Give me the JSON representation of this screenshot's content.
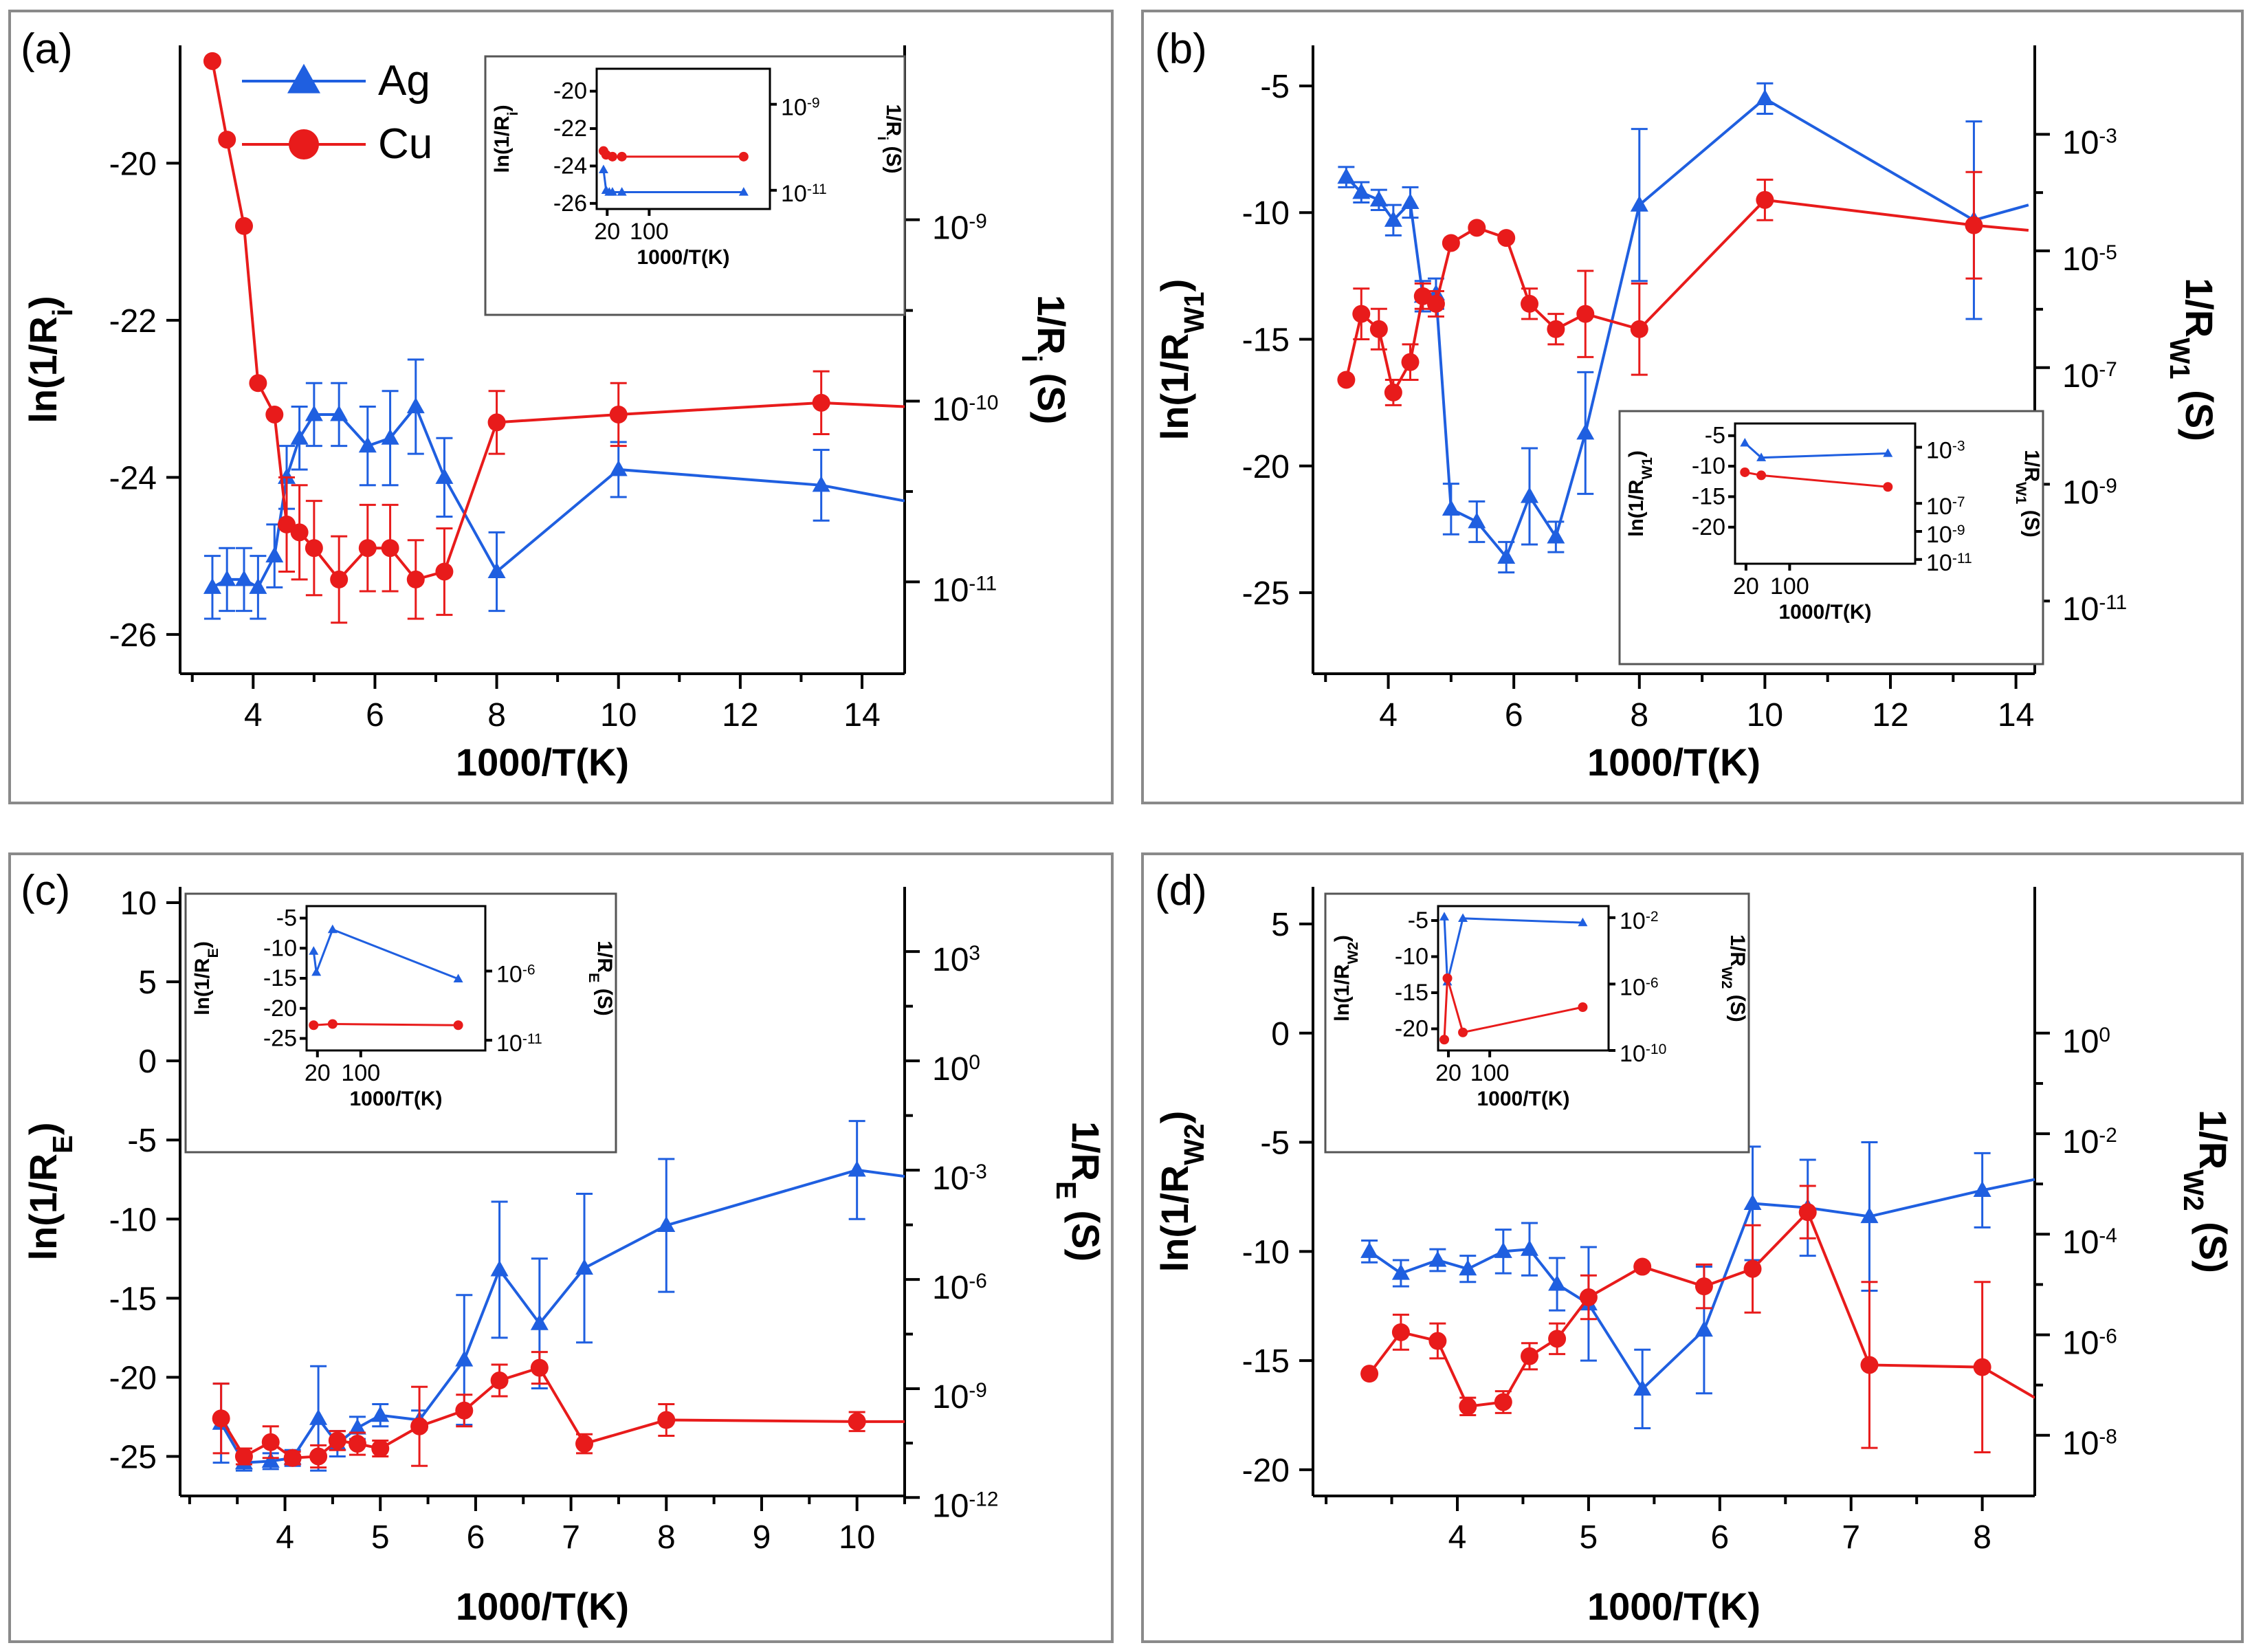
{
  "colors": {
    "ag": "#1f5fe0",
    "cu": "#e81b1b"
  },
  "legend": {
    "ag": "Ag",
    "cu": "Cu"
  },
  "chart_data": [
    {
      "panel": "(a)",
      "type": "line",
      "xlabel": "1000/T(K)",
      "ylabel": "ln(1/R",
      "ylabel_sub": "i",
      "ylabel_end": ")",
      "y2label": "1/R",
      "y2label_sub": "i",
      "y2label_end": " (S)",
      "xlim": [
        2.8,
        14.7
      ],
      "ylim": [
        -26.5,
        -18.5
      ],
      "xticks": [
        4,
        6,
        8,
        10,
        12,
        14
      ],
      "yticks": [
        -26,
        -24,
        -22,
        -20
      ],
      "y2ticks": [
        {
          "label": "10",
          "exp": "-11",
          "y": -25.33
        },
        {
          "label": "10",
          "exp": "-10",
          "y": -23.03
        },
        {
          "label": "10",
          "exp": "-9",
          "y": -20.72
        }
      ],
      "legend_show": true,
      "series": [
        {
          "name": "Ag",
          "color": "ag",
          "marker": "triangle",
          "x": [
            3.33,
            3.57,
            3.85,
            4.08,
            4.35,
            4.55,
            4.76,
            5.0,
            5.41,
            5.88,
            6.25,
            6.67,
            7.14,
            8.0,
            10.0,
            13.33,
            14.7
          ],
          "y": [
            -25.4,
            -25.3,
            -25.3,
            -25.4,
            -25.0,
            -24.0,
            -23.5,
            -23.2,
            -23.2,
            -23.6,
            -23.5,
            -23.1,
            -24.0,
            -25.2,
            -23.9,
            -24.1,
            -24.3
          ],
          "err": [
            0.4,
            0.4,
            0.4,
            0.4,
            0.4,
            0.4,
            0.4,
            0.4,
            0.4,
            0.5,
            0.6,
            0.6,
            0.5,
            0.5,
            0.35,
            0.45,
            0
          ]
        },
        {
          "name": "Cu",
          "color": "cu",
          "marker": "circle",
          "x": [
            3.33,
            3.57,
            3.85,
            4.08,
            4.35,
            4.55,
            4.76,
            5.0,
            5.41,
            5.88,
            6.25,
            6.67,
            7.14,
            8.0,
            10.0,
            13.33,
            14.7
          ],
          "y": [
            -18.7,
            -19.7,
            -20.8,
            -22.8,
            -23.2,
            -24.6,
            -24.7,
            -24.9,
            -25.3,
            -24.9,
            -24.9,
            -25.3,
            -25.2,
            -23.3,
            -23.2,
            -23.05,
            -23.1
          ],
          "err": [
            0,
            0,
            0,
            0,
            0,
            0.6,
            0.6,
            0.6,
            0.55,
            0.55,
            0.55,
            0.5,
            0.55,
            0.4,
            0.4,
            0.4,
            0
          ]
        }
      ],
      "inset": {
        "ylabel": "ln(1/R",
        "ylabel_sub": "i",
        "ylabel_end": ")",
        "y2label": "1/R",
        "y2label_sub": "i",
        "y2label_end": " (S)",
        "xlabel": "1000/T(K)",
        "xlim": [
          0,
          330
        ],
        "ylim": [
          -26.3,
          -18.8
        ],
        "xticks": [
          20,
          100
        ],
        "yticks": [
          -26,
          -24,
          -22,
          -20
        ],
        "y2ticks": [
          {
            "label": "10",
            "exp": "-11",
            "y": -25.3
          },
          {
            "label": "10",
            "exp": "-9",
            "y": -20.7
          }
        ],
        "series": [
          {
            "name": "Ag",
            "color": "ag",
            "marker": "triangle",
            "x": [
              13,
              18,
              24,
              30,
              48,
              280
            ],
            "y": [
              -24.2,
              -25.3,
              -25.4,
              -25.4,
              -25.4,
              -25.4
            ]
          },
          {
            "name": "Cu",
            "color": "cu",
            "marker": "circle",
            "x": [
              13,
              18,
              30,
              48,
              280
            ],
            "y": [
              -23.2,
              -23.4,
              -23.5,
              -23.5,
              -23.5
            ]
          }
        ]
      }
    },
    {
      "panel": "(b)",
      "type": "line",
      "xlabel": "1000/T(K)",
      "ylabel": "ln(1/R",
      "ylabel_sub": "W1",
      "ylabel_end": ")",
      "y2label": "1/R",
      "y2label_sub": "W1",
      "y2label_end": " (S)",
      "xlim": [
        2.8,
        14.3
      ],
      "ylim": [
        -28.2,
        -3.4
      ],
      "xticks": [
        4,
        6,
        8,
        10,
        12,
        14
      ],
      "yticks": [
        -25,
        -20,
        -15,
        -10,
        -5
      ],
      "y2ticks": [
        {
          "label": "10",
          "exp": "-11",
          "y": -25.33
        },
        {
          "label": "10",
          "exp": "-9",
          "y": -20.72
        },
        {
          "label": "10",
          "exp": "-7",
          "y": -16.12
        },
        {
          "label": "10",
          "exp": "-5",
          "y": -11.51
        },
        {
          "label": "10",
          "exp": "-3",
          "y": -6.91
        }
      ],
      "legend_show": false,
      "series": [
        {
          "name": "Ag",
          "color": "ag",
          "marker": "triangle",
          "x": [
            3.33,
            3.57,
            3.85,
            4.08,
            4.35,
            4.55,
            4.76,
            5.0,
            5.41,
            5.88,
            6.25,
            6.67,
            7.14,
            8.0,
            10.0,
            13.33,
            14.2
          ],
          "y": [
            -8.6,
            -9.2,
            -9.5,
            -10.3,
            -9.6,
            -13.3,
            -13.2,
            -21.7,
            -22.2,
            -23.6,
            -21.2,
            -22.8,
            -18.7,
            -9.7,
            -5.5,
            -10.3,
            -9.7
          ],
          "err": [
            0.4,
            0.4,
            0.4,
            0.6,
            0.6,
            0.6,
            0.6,
            1.0,
            0.8,
            0.6,
            1.9,
            0.6,
            2.4,
            3.0,
            0.6,
            3.9,
            0
          ]
        },
        {
          "name": "Cu",
          "color": "cu",
          "marker": "circle",
          "x": [
            3.33,
            3.57,
            3.85,
            4.08,
            4.35,
            4.55,
            4.76,
            5.0,
            5.41,
            5.88,
            6.25,
            6.67,
            7.14,
            8.0,
            10.0,
            13.33,
            14.2
          ],
          "y": [
            -16.6,
            -14.0,
            -14.6,
            -17.1,
            -15.9,
            -13.3,
            -13.6,
            -11.2,
            -10.6,
            -11.0,
            -13.6,
            -14.6,
            -14.0,
            -14.6,
            -9.5,
            -10.5,
            -10.7
          ],
          "err": [
            0,
            1.0,
            0.8,
            0.5,
            0.7,
            0.5,
            0.5,
            0,
            0,
            0,
            0.6,
            0.6,
            1.7,
            1.8,
            0.8,
            2.1,
            0
          ]
        }
      ],
      "inset": {
        "ylabel": "ln(1/R",
        "ylabel_sub": "W1",
        "ylabel_end": ")",
        "y2label": "1/R",
        "y2label_sub": "W1",
        "y2label_end": " (S)",
        "xlabel": "1000/T(K)",
        "xlim": [
          0,
          330
        ],
        "ylim": [
          -26,
          -3
        ],
        "xticks": [
          20,
          100
        ],
        "yticks": [
          -20,
          -15,
          -10,
          -5
        ],
        "y2ticks": [
          {
            "label": "10",
            "exp": "-11",
            "y": -25.3
          },
          {
            "label": "10",
            "exp": "-9",
            "y": -20.7
          },
          {
            "label": "10",
            "exp": "-7",
            "y": -16.1
          },
          {
            "label": "10",
            "exp": "-3",
            "y": -6.9
          }
        ],
        "series": [
          {
            "name": "Ag",
            "color": "ag",
            "marker": "triangle",
            "x": [
              18,
              48,
              280
            ],
            "y": [
              -6.2,
              -8.6,
              -7.9
            ]
          },
          {
            "name": "Cu",
            "color": "cu",
            "marker": "circle",
            "x": [
              18,
              48,
              280
            ],
            "y": [
              -11.0,
              -11.5,
              -13.4
            ]
          }
        ]
      }
    },
    {
      "panel": "(c)",
      "type": "line",
      "xlabel": "1000/T(K)",
      "ylabel": "ln(1/R",
      "ylabel_sub": "E",
      "ylabel_end": ")",
      "y2label": "1/R",
      "y2label_sub": "E",
      "y2label_end": " (S)",
      "xlim": [
        2.9,
        10.5
      ],
      "ylim": [
        -27.5,
        11
      ],
      "xticks": [
        4,
        5,
        6,
        7,
        8,
        9,
        10
      ],
      "yticks": [
        -25,
        -20,
        -15,
        -10,
        -5,
        0,
        5,
        10
      ],
      "y2ticks": [
        {
          "label": "10",
          "exp": "-12",
          "y": -27.6
        },
        {
          "label": "10",
          "exp": "-9",
          "y": -20.72
        },
        {
          "label": "10",
          "exp": "-6",
          "y": -13.82
        },
        {
          "label": "10",
          "exp": "-3",
          "y": -6.91
        },
        {
          "label": "10",
          "exp": "0",
          "y": 0
        },
        {
          "label": "10",
          "exp": "3",
          "y": 6.91
        }
      ],
      "legend_show": false,
      "series": [
        {
          "name": "Ag",
          "color": "ag",
          "marker": "triangle",
          "x": [
            3.33,
            3.57,
            3.85,
            4.08,
            4.35,
            4.55,
            4.76,
            5.0,
            5.41,
            5.88,
            6.25,
            6.67,
            7.14,
            8.0,
            10.0,
            10.5
          ],
          "y": [
            -22.9,
            -25.4,
            -25.3,
            -25.1,
            -22.6,
            -24.2,
            -23.2,
            -22.4,
            -22.7,
            -18.9,
            -13.2,
            -16.6,
            -13.1,
            -10.4,
            -6.9,
            -7.3
          ],
          "err": [
            2.5,
            0.5,
            0.5,
            0.5,
            3.3,
            0.8,
            0.7,
            0.7,
            0.6,
            4.1,
            4.3,
            4.1,
            4.7,
            4.2,
            3.1,
            0
          ]
        },
        {
          "name": "Cu",
          "color": "cu",
          "marker": "circle",
          "x": [
            3.33,
            3.57,
            3.85,
            4.08,
            4.35,
            4.55,
            4.76,
            5.0,
            5.41,
            5.88,
            6.25,
            6.67,
            7.14,
            8.0,
            10.0,
            10.5
          ],
          "y": [
            -22.6,
            -25.0,
            -24.1,
            -25.1,
            -25.0,
            -24.0,
            -24.2,
            -24.5,
            -23.1,
            -22.1,
            -20.2,
            -19.4,
            -24.2,
            -22.7,
            -22.8,
            -22.8
          ],
          "err": [
            2.2,
            0.5,
            1.0,
            0.4,
            0.7,
            0.6,
            0.7,
            0.5,
            2.5,
            1.0,
            1.0,
            1.0,
            0.6,
            1.0,
            0.6,
            0
          ]
        }
      ],
      "inset": {
        "ylabel": "ln(1/R",
        "ylabel_sub": "E",
        "ylabel_end": ")",
        "y2label": "1/R",
        "y2label_sub": "E",
        "y2label_end": " (S)",
        "xlabel": "1000/T(K)",
        "xlim": [
          0,
          330
        ],
        "ylim": [
          -27,
          -3
        ],
        "xticks": [
          20,
          100
        ],
        "yticks": [
          -25,
          -20,
          -15,
          -10,
          -5
        ],
        "y2ticks": [
          {
            "label": "10",
            "exp": "-11",
            "y": -25.3
          },
          {
            "label": "10",
            "exp": "-6",
            "y": -13.8
          }
        ],
        "series": [
          {
            "name": "Ag",
            "color": "ag",
            "marker": "triangle",
            "x": [
              13,
              18,
              48,
              280
            ],
            "y": [
              -10.5,
              -14.0,
              -6.9,
              -15.1
            ]
          },
          {
            "name": "Cu",
            "color": "cu",
            "marker": "circle",
            "x": [
              13,
              48,
              280
            ],
            "y": [
              -22.8,
              -22.6,
              -22.8
            ]
          }
        ]
      }
    },
    {
      "panel": "(d)",
      "type": "line",
      "xlabel": "1000/T(K)",
      "ylabel": "ln(1/R",
      "ylabel_sub": "W2",
      "ylabel_end": ")",
      "y2label": "1/R",
      "y2label_sub": "W2",
      "y2label_end": " (S)",
      "xlim": [
        2.9,
        8.4
      ],
      "ylim": [
        -21.2,
        6.7
      ],
      "xticks": [
        4,
        5,
        6,
        7,
        8
      ],
      "yticks": [
        -20,
        -15,
        -10,
        -5,
        0,
        5
      ],
      "y2ticks": [
        {
          "label": "10",
          "exp": "-8",
          "y": -18.42
        },
        {
          "label": "10",
          "exp": "-6",
          "y": -13.82
        },
        {
          "label": "10",
          "exp": "-4",
          "y": -9.21
        },
        {
          "label": "10",
          "exp": "-2",
          "y": -4.61
        },
        {
          "label": "10",
          "exp": "0",
          "y": 0
        }
      ],
      "legend_show": false,
      "series": [
        {
          "name": "Ag",
          "color": "ag",
          "marker": "triangle",
          "x": [
            3.33,
            3.57,
            3.85,
            4.08,
            4.35,
            4.55,
            4.76,
            5.0,
            5.41,
            5.88,
            6.25,
            6.67,
            7.14,
            8.0,
            8.4
          ],
          "y": [
            -10.0,
            -11.0,
            -10.4,
            -10.8,
            -10.0,
            -9.9,
            -11.5,
            -12.4,
            -16.3,
            -13.6,
            -7.8,
            -8.0,
            -8.4,
            -7.2,
            -6.7
          ],
          "err": [
            0.5,
            0.6,
            0.5,
            0.6,
            1.0,
            1.2,
            1.2,
            2.6,
            1.8,
            2.9,
            2.6,
            2.2,
            3.4,
            1.7,
            0
          ]
        },
        {
          "name": "Cu",
          "color": "cu",
          "marker": "circle",
          "x": [
            3.33,
            3.57,
            3.85,
            4.08,
            4.35,
            4.55,
            4.76,
            5.0,
            5.41,
            5.88,
            6.25,
            6.67,
            7.14,
            8.0,
            8.4
          ],
          "y": [
            -15.6,
            -13.7,
            -14.1,
            -17.1,
            -16.9,
            -14.8,
            -14.0,
            -12.1,
            -10.7,
            -11.6,
            -10.8,
            -8.2,
            -15.2,
            -15.3,
            -16.7
          ],
          "err": [
            0,
            0.8,
            0.8,
            0.4,
            0.5,
            0.6,
            0.7,
            1.0,
            0,
            1.0,
            2.0,
            1.2,
            3.8,
            3.9,
            0
          ]
        }
      ],
      "inset": {
        "ylabel": "ln(1/R",
        "ylabel_sub": "W2",
        "ylabel_end": ")",
        "y2label": "1/R",
        "y2label_sub": "W2",
        "y2label_end": " (S)",
        "xlabel": "1000/T(K)",
        "xlim": [
          0,
          330
        ],
        "ylim": [
          -23,
          -3
        ],
        "xticks": [
          20,
          100
        ],
        "yticks": [
          -20,
          -15,
          -10,
          -5
        ],
        "y2ticks": [
          {
            "label": "10",
            "exp": "-10",
            "y": -23.0
          },
          {
            "label": "10",
            "exp": "-6",
            "y": -13.8
          },
          {
            "label": "10",
            "exp": "-2",
            "y": -4.6
          }
        ],
        "series": [
          {
            "name": "Ag",
            "color": "ag",
            "marker": "triangle",
            "x": [
              12,
              18,
              48,
              280
            ],
            "y": [
              -4.5,
              -13.5,
              -4.7,
              -5.3
            ]
          },
          {
            "name": "Cu",
            "color": "cu",
            "marker": "circle",
            "x": [
              12,
              18,
              48,
              280
            ],
            "y": [
              -21.5,
              -13.0,
              -20.5,
              -17.0
            ]
          }
        ]
      }
    }
  ]
}
